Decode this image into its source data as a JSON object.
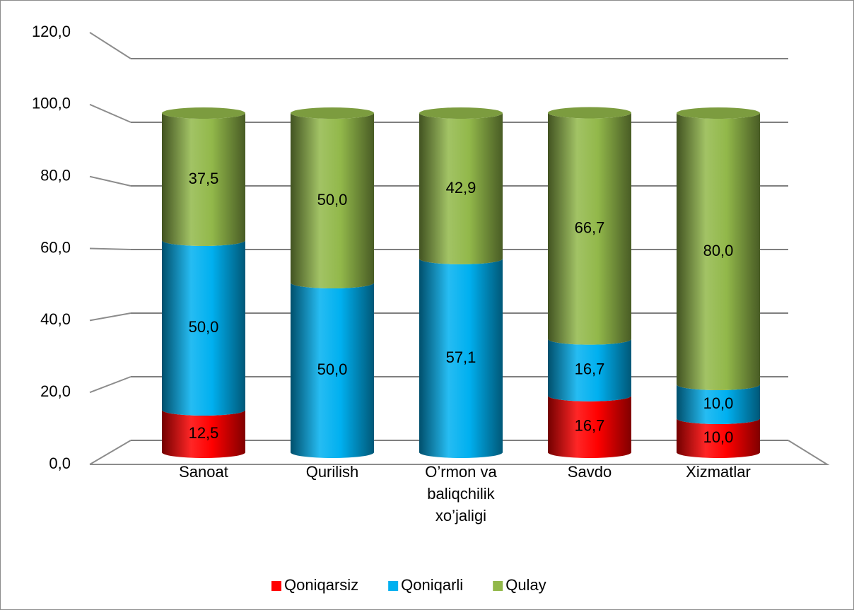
{
  "chart_data": {
    "type": "bar3d_stacked",
    "categories": [
      "Sanoat",
      "Qurilish",
      "O’rmon va baliqchilik xo’jaligi",
      "Savdo",
      "Xizmatlar"
    ],
    "series": [
      {
        "name": "Qoniqarsiz",
        "color": "#ff0000",
        "values": [
          12.5,
          0,
          0,
          16.7,
          10.0
        ],
        "value_labels": [
          "12,5",
          null,
          null,
          "16,7",
          "10,0"
        ]
      },
      {
        "name": "Qoniqarli",
        "color": "#00b0f0",
        "values": [
          50.0,
          50.0,
          57.1,
          16.7,
          10.0
        ],
        "value_labels": [
          "50,0",
          "50,0",
          "57,1",
          "16,7",
          "10,0"
        ]
      },
      {
        "name": "Qulay",
        "color": "#92b84a",
        "values": [
          37.5,
          50.0,
          42.9,
          66.7,
          80.0
        ],
        "value_labels": [
          "37,5",
          "50,0",
          "42,9",
          "66,7",
          "80,0"
        ]
      }
    ],
    "ylim": [
      0,
      120
    ],
    "yticks": [
      {
        "value": 0,
        "label": "0,0"
      },
      {
        "value": 20,
        "label": "20,0"
      },
      {
        "value": 40,
        "label": "40,0"
      },
      {
        "value": 60,
        "label": "60,0"
      },
      {
        "value": 80,
        "label": "80,0"
      },
      {
        "value": 100,
        "label": "100,0"
      },
      {
        "value": 120,
        "label": "120,0"
      }
    ],
    "grid": true,
    "legend": "bottom"
  }
}
